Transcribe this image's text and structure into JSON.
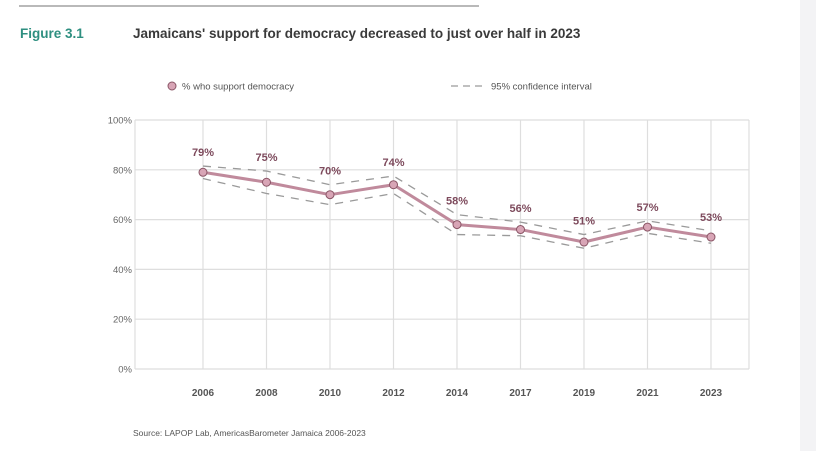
{
  "figure": {
    "label": "Figure 3.1",
    "title": "Jamaicans' support for democracy decreased to just over half in 2023",
    "source": "Source: LAPOP Lab, AmericasBarometer Jamaica 2006-2023"
  },
  "colors": {
    "figure_label": "#2e8f80",
    "series_line": "#c08a9c",
    "series_marker_fill": "#d8a5b6",
    "series_marker_stroke": "#8a5566",
    "ci_line": "#9a9a9a",
    "data_label": "#7d4a5c",
    "grid": "#dedede"
  },
  "chart_data": {
    "type": "line",
    "title": "Jamaicans' support for democracy decreased to just over half in 2023",
    "xlabel": "",
    "ylabel": "",
    "categories": [
      "2006",
      "2008",
      "2010",
      "2012",
      "2014",
      "2017",
      "2019",
      "2021",
      "2023"
    ],
    "series": [
      {
        "name": "% who support democracy",
        "values": [
          79,
          75,
          70,
          74,
          58,
          56,
          51,
          57,
          53
        ],
        "labels": [
          "79%",
          "75%",
          "70%",
          "74%",
          "58%",
          "56%",
          "51%",
          "57%",
          "53%"
        ]
      },
      {
        "name": "95% confidence interval (upper)",
        "values": [
          81.5,
          79.5,
          74,
          77.5,
          62,
          59,
          54,
          59.5,
          55.5
        ]
      },
      {
        "name": "95% confidence interval (lower)",
        "values": [
          76.5,
          70.5,
          66,
          70.5,
          54,
          53.5,
          48.5,
          54.5,
          50.5
        ]
      }
    ],
    "ylim": [
      0,
      100
    ],
    "yticks": [
      0,
      20,
      40,
      60,
      80,
      100
    ],
    "ytick_labels": [
      "0%",
      "20%",
      "40%",
      "60%",
      "80%",
      "100%"
    ],
    "grid": true,
    "legend": {
      "placement": "top",
      "entries": [
        "% who support democracy",
        "95% confidence interval"
      ]
    }
  }
}
